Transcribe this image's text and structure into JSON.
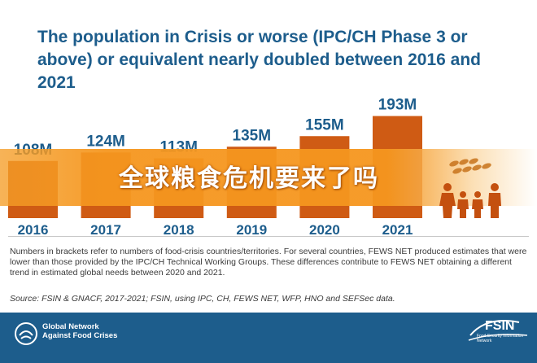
{
  "title": "The population in Crisis or worse (IPC/CH Phase 3 or above) or equivalent nearly doubled between 2016 and 2021",
  "overlay_text": "全球粮食危机要来了吗",
  "note": "Numbers in brackets refer to numbers of food-crisis countries/territories. For several countries, FEWS NET produced estimates that were lower than those provided by the IPC/CH Technical Working Groups. These differences contribute to FEWS NET obtaining a different trend in estimated global needs between 2020 and 2021.",
  "source": "Source: FSIN & GNACF, 2017-2021; FSIN, using IPC, CH, FEWS NET, WFP, HNO and SEFSec data.",
  "footer": {
    "gn_line1": "Global Network",
    "gn_line2": "Against Food Crises",
    "fsin": "FSIN",
    "fsin_sub": "Food Security Information Network"
  },
  "colors": {
    "bar": "#cf5b14",
    "title": "#1d5d8c",
    "label": "#1d5d8c",
    "footer": "#1d5d8c"
  },
  "chart_data": {
    "type": "bar",
    "categories": [
      "2016",
      "2017",
      "2018",
      "2019",
      "2020",
      "2021"
    ],
    "values": [
      108,
      124,
      113,
      135,
      155,
      193
    ],
    "value_labels": [
      "108M",
      "124M",
      "113M",
      "135M",
      "155M",
      "193M"
    ],
    "title": "The population in Crisis or worse (IPC/CH Phase 3 or above) or equivalent nearly doubled between 2016 and 2021",
    "ylim": [
      0,
      200
    ],
    "grid": false
  }
}
